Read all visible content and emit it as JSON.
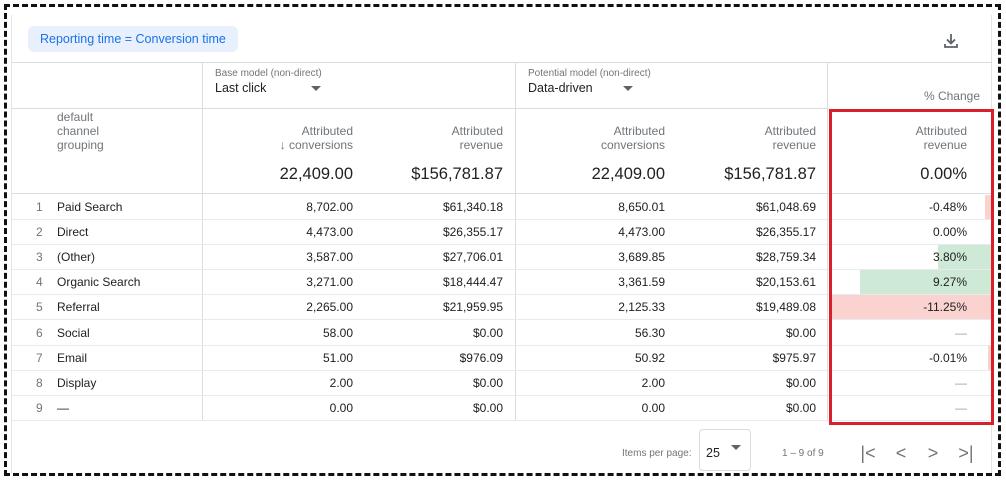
{
  "chip_label": "Reporting time = Conversion time",
  "icons": {
    "download": "download-icon",
    "sort": "arrow-down-icon"
  },
  "colors": {
    "positive": "#ceead6",
    "negative": "#fad2cf",
    "highlight": "#d9202a",
    "chip_bg": "#e8f0fe",
    "chip_text": "#1a73e8"
  },
  "base_model": {
    "label": "Base model (non-direct)",
    "value": "Last click"
  },
  "potential_model": {
    "label": "Potential model (non-direct)",
    "value": "Data-driven"
  },
  "pct_change_header": "% Change",
  "dimension_header": [
    "default",
    "channel",
    "grouping"
  ],
  "col_headers": {
    "conv_line1": "Attributed",
    "conv_line2": "conversions",
    "rev_line1": "Attributed",
    "rev_line2": "revenue"
  },
  "totals": {
    "base_conv": "22,409.00",
    "base_rev": "$156,781.87",
    "pot_conv": "22,409.00",
    "pot_rev": "$156,781.87",
    "change": "0.00%"
  },
  "rows": [
    {
      "idx": "1",
      "name": "Paid Search",
      "base_conv": "8,702.00",
      "base_rev": "$61,340.18",
      "pot_conv": "8,650.01",
      "pot_rev": "$61,048.69",
      "change": "-0.48%",
      "change_value": -0.48
    },
    {
      "idx": "2",
      "name": "Direct",
      "base_conv": "4,473.00",
      "base_rev": "$26,355.17",
      "pot_conv": "4,473.00",
      "pot_rev": "$26,355.17",
      "change": "0.00%",
      "change_value": 0
    },
    {
      "idx": "3",
      "name": "(Other)",
      "base_conv": "3,587.00",
      "base_rev": "$27,706.01",
      "pot_conv": "3,689.85",
      "pot_rev": "$28,759.34",
      "change": "3.80%",
      "change_value": 3.8
    },
    {
      "idx": "4",
      "name": "Organic Search",
      "base_conv": "3,271.00",
      "base_rev": "$18,444.47",
      "pot_conv": "3,361.59",
      "pot_rev": "$20,153.61",
      "change": "9.27%",
      "change_value": 9.27
    },
    {
      "idx": "5",
      "name": "Referral",
      "base_conv": "2,265.00",
      "base_rev": "$21,959.95",
      "pot_conv": "2,125.33",
      "pot_rev": "$19,489.08",
      "change": "-11.25%",
      "change_value": -11.25
    },
    {
      "idx": "6",
      "name": "Social",
      "base_conv": "58.00",
      "base_rev": "$0.00",
      "pot_conv": "56.30",
      "pot_rev": "$0.00",
      "change": "—",
      "change_value": 0
    },
    {
      "idx": "7",
      "name": "Email",
      "base_conv": "51.00",
      "base_rev": "$976.09",
      "pot_conv": "50.92",
      "pot_rev": "$975.97",
      "change": "-0.01%",
      "change_value": -0.01
    },
    {
      "idx": "8",
      "name": "Display",
      "base_conv": "2.00",
      "base_rev": "$0.00",
      "pot_conv": "2.00",
      "pot_rev": "$0.00",
      "change": "—",
      "change_value": 0
    },
    {
      "idx": "9",
      "name": "—",
      "base_conv": "0.00",
      "base_rev": "$0.00",
      "pot_conv": "0.00",
      "pot_rev": "$0.00",
      "change": "—",
      "change_value": 0
    }
  ],
  "footer": {
    "items_per_page_label": "Items per page:",
    "items_per_page_value": "25",
    "range": "1 – 9 of 9",
    "first": "|<",
    "prev": "<",
    "next": ">",
    "last": ">|"
  }
}
